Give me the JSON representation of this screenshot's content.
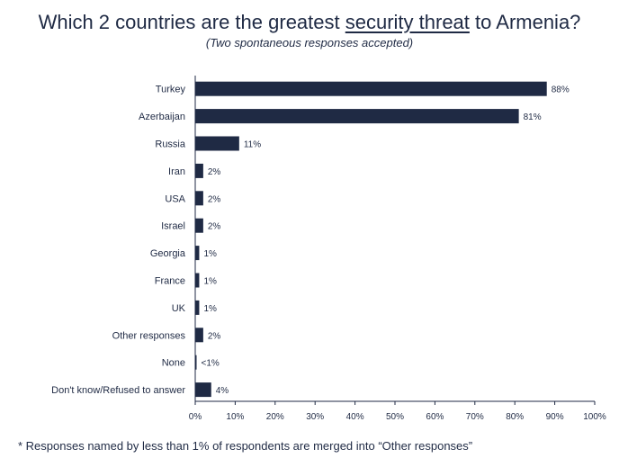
{
  "header": {
    "title_before": "Which 2 countries are the greatest ",
    "title_underlined": "security threat",
    "title_after": " to Armenia?",
    "subtitle": "(Two spontaneous responses accepted)"
  },
  "footnote": "* Responses named by less than 1% of respondents are merged into “Other responses”",
  "chart_data": {
    "type": "bar",
    "orientation": "horizontal",
    "title": "Which 2 countries are the greatest security threat to Armenia?",
    "subtitle": "(Two spontaneous responses accepted)",
    "categories": [
      "Turkey",
      "Azerbaijan",
      "Russia",
      "Iran",
      "USA",
      "Israel",
      "Georgia",
      "France",
      "UK",
      "Other responses",
      "None",
      "Don't know/Refused to answer"
    ],
    "values": [
      88,
      81,
      11,
      2,
      2,
      2,
      1,
      1,
      1,
      2,
      0.3,
      4
    ],
    "value_labels": [
      "88%",
      "81%",
      "11%",
      "2%",
      "2%",
      "2%",
      "1%",
      "1%",
      "1%",
      "2%",
      "<1%",
      "4%"
    ],
    "xlim": [
      0,
      100
    ],
    "x_ticks": [
      "0%",
      "10%",
      "20%",
      "30%",
      "40%",
      "50%",
      "60%",
      "70%",
      "80%",
      "90%",
      "100%"
    ],
    "grid": false,
    "bar_color": "#1f2a44"
  }
}
